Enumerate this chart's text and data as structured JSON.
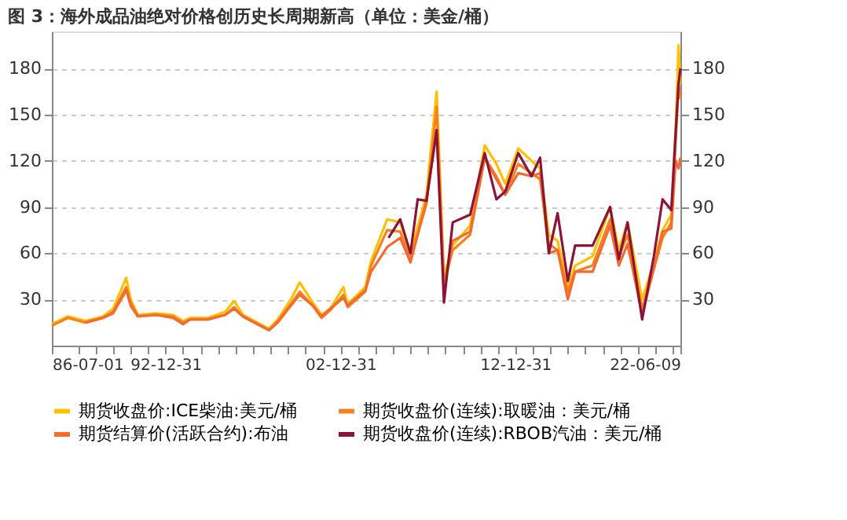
{
  "chart_data": {
    "type": "line",
    "title": "图 3：海外成品油绝对价格创历史长周期新高（单位：美金/桶）",
    "xlim": [
      "1986-07-01",
      "2022-06-09"
    ],
    "xticks": [
      {
        "value": "1986-07-01",
        "label": "86-07-01"
      },
      {
        "value": "1987-12-31",
        "label": null
      },
      {
        "value": "1988-12-31",
        "label": null
      },
      {
        "value": "1989-12-31",
        "label": null
      },
      {
        "value": "1990-12-31",
        "label": null
      },
      {
        "value": "1991-12-31",
        "label": null
      },
      {
        "value": "1992-12-31",
        "label": "92-12-31"
      },
      {
        "value": "1993-12-31",
        "label": null
      },
      {
        "value": "1994-12-31",
        "label": null
      },
      {
        "value": "1995-12-31",
        "label": null
      },
      {
        "value": "1996-12-31",
        "label": null
      },
      {
        "value": "1997-12-31",
        "label": null
      },
      {
        "value": "1998-12-31",
        "label": null
      },
      {
        "value": "1999-12-31",
        "label": null
      },
      {
        "value": "2000-12-31",
        "label": null
      },
      {
        "value": "2001-12-31",
        "label": null
      },
      {
        "value": "2002-12-31",
        "label": "02-12-31"
      },
      {
        "value": "2003-12-31",
        "label": null
      },
      {
        "value": "2004-12-31",
        "label": null
      },
      {
        "value": "2005-12-31",
        "label": null
      },
      {
        "value": "2006-12-31",
        "label": null
      },
      {
        "value": "2007-12-31",
        "label": null
      },
      {
        "value": "2008-12-31",
        "label": null
      },
      {
        "value": "2009-12-31",
        "label": null
      },
      {
        "value": "2010-12-31",
        "label": null
      },
      {
        "value": "2011-12-31",
        "label": null
      },
      {
        "value": "2012-12-31",
        "label": "12-12-31"
      },
      {
        "value": "2013-12-31",
        "label": null
      },
      {
        "value": "2014-12-31",
        "label": null
      },
      {
        "value": "2015-12-31",
        "label": null
      },
      {
        "value": "2016-12-31",
        "label": null
      },
      {
        "value": "2017-12-31",
        "label": null
      },
      {
        "value": "2018-12-31",
        "label": null
      },
      {
        "value": "2019-12-31",
        "label": null
      },
      {
        "value": "2020-12-31",
        "label": null
      },
      {
        "value": "2021-12-31",
        "label": null
      },
      {
        "value": "2022-06-09",
        "label": "22-06-09"
      }
    ],
    "ylim": [
      0,
      204
    ],
    "yticks": [
      30,
      60,
      90,
      120,
      150,
      180
    ],
    "y2lim": [
      0,
      204
    ],
    "y2ticks": [
      30,
      60,
      90,
      120,
      150,
      180
    ],
    "grid": "y",
    "legend": "bottom",
    "line_style": "solid",
    "marker": "none",
    "series": [
      {
        "name": "期货收盘价:ICE柴油:美元/桶",
        "color": "#ffc000",
        "x": [
          "1986-07",
          "1987-06",
          "1988-06",
          "1989-06",
          "1990-01",
          "1990-10",
          "1991-01",
          "1991-06",
          "1992-06",
          "1993-06",
          "1994-01",
          "1994-06",
          "1995-06",
          "1996-06",
          "1996-12",
          "1997-06",
          "1998-06",
          "1998-12",
          "1999-06",
          "2000-03",
          "2000-09",
          "2001-06",
          "2001-12",
          "2002-06",
          "2003-03",
          "2003-06",
          "2004-06",
          "2004-10",
          "2005-09",
          "2006-06",
          "2007-01",
          "2007-12",
          "2008-07",
          "2008-12",
          "2009-06",
          "2010-06",
          "2011-04",
          "2011-12",
          "2012-06",
          "2013-03",
          "2013-12",
          "2014-06",
          "2014-12",
          "2015-06",
          "2016-01",
          "2016-06",
          "2017-06",
          "2018-06",
          "2018-12",
          "2019-06",
          "2020-04",
          "2020-12",
          "2021-06",
          "2021-12",
          "2022-03",
          "2022-05",
          "2022-06-09"
        ],
        "values": [
          14,
          19,
          16,
          19,
          24,
          44,
          30,
          20,
          21,
          20,
          16,
          18,
          18,
          22,
          29,
          20,
          14,
          11,
          17,
          30,
          41,
          28,
          20,
          24,
          38,
          27,
          38,
          55,
          82,
          80,
          60,
          98,
          165,
          45,
          65,
          78,
          130,
          118,
          105,
          128,
          120,
          115,
          72,
          68,
          38,
          52,
          58,
          90,
          62,
          80,
          30,
          54,
          75,
          85,
          140,
          195,
          170
        ]
      },
      {
        "name": "期货收盘价(连续):取暖油：美元/桶",
        "color": "#f5821f",
        "x": [
          "1986-07",
          "1987-06",
          "1988-06",
          "1989-06",
          "1990-01",
          "1990-10",
          "1991-01",
          "1991-06",
          "1992-06",
          "1993-06",
          "1994-01",
          "1994-06",
          "1995-06",
          "1996-06",
          "1996-12",
          "1997-06",
          "1998-06",
          "1998-12",
          "1999-06",
          "2000-03",
          "2000-09",
          "2001-06",
          "2001-12",
          "2002-06",
          "2003-03",
          "2003-06",
          "2004-06",
          "2004-10",
          "2005-09",
          "2006-06",
          "2007-01",
          "2007-12",
          "2008-07",
          "2008-12",
          "2009-06",
          "2010-06",
          "2011-04",
          "2011-12",
          "2012-06",
          "2013-03",
          "2013-12",
          "2014-06",
          "2014-12",
          "2015-06",
          "2016-01",
          "2016-06",
          "2017-06",
          "2018-06",
          "2018-12",
          "2019-06",
          "2020-04",
          "2020-12",
          "2021-06",
          "2021-12",
          "2022-03",
          "2022-05",
          "2022-06-09"
        ],
        "values": [
          13,
          18,
          15,
          18,
          22,
          38,
          28,
          19,
          20,
          19,
          15,
          17,
          17,
          20,
          25,
          19,
          13,
          10,
          16,
          27,
          35,
          26,
          18,
          23,
          33,
          25,
          35,
          52,
          75,
          74,
          56,
          92,
          155,
          40,
          62,
          72,
          122,
          110,
          98,
          118,
          112,
          108,
          66,
          62,
          35,
          48,
          52,
          82,
          58,
          72,
          24,
          50,
          70,
          80,
          132,
          170,
          160
        ]
      },
      {
        "name": "期货结算价(活跃合约):布油",
        "color": "#f26b30",
        "x": [
          "1988-06",
          "1989-06",
          "1990-01",
          "1990-10",
          "1991-01",
          "1991-06",
          "1992-06",
          "1993-06",
          "1994-01",
          "1994-06",
          "1995-06",
          "1996-06",
          "1996-12",
          "1997-06",
          "1998-06",
          "1998-12",
          "1999-06",
          "2000-03",
          "2000-09",
          "2001-06",
          "2001-12",
          "2002-06",
          "2003-03",
          "2003-06",
          "2004-06",
          "2004-10",
          "2005-09",
          "2006-06",
          "2007-01",
          "2007-12",
          "2008-07",
          "2008-12",
          "2009-06",
          "2010-06",
          "2011-04",
          "2011-12",
          "2012-06",
          "2013-03",
          "2013-12",
          "2014-06",
          "2014-12",
          "2015-06",
          "2016-01",
          "2016-06",
          "2017-06",
          "2018-06",
          "2018-12",
          "2019-06",
          "2020-04",
          "2020-12",
          "2021-06",
          "2021-12",
          "2022-03",
          "2022-05",
          "2022-06-09"
        ],
        "values": [
          15,
          18,
          21,
          36,
          26,
          19,
          20,
          18,
          14,
          17,
          17,
          20,
          24,
          19,
          13,
          10,
          15,
          26,
          33,
          26,
          19,
          24,
          31,
          26,
          36,
          48,
          64,
          70,
          54,
          94,
          140,
          38,
          68,
          74,
          122,
          108,
          98,
          112,
          110,
          112,
          60,
          62,
          30,
          48,
          48,
          78,
          52,
          66,
          20,
          50,
          74,
          76,
          120,
          115,
          122
        ]
      },
      {
        "name": "期货收盘价(连续):RBOB汽油：美元/桶",
        "color": "#8b1538",
        "x": [
          "2005-10",
          "2006-06",
          "2007-01",
          "2007-06",
          "2007-12",
          "2008-07",
          "2008-12",
          "2009-06",
          "2010-06",
          "2011-04",
          "2011-12",
          "2012-06",
          "2013-03",
          "2013-12",
          "2014-06",
          "2014-12",
          "2015-06",
          "2016-01",
          "2016-06",
          "2017-06",
          "2018-06",
          "2018-12",
          "2019-06",
          "2020-04",
          "2020-12",
          "2021-06",
          "2021-12",
          "2022-03",
          "2022-05",
          "2022-06-09"
        ],
        "values": [
          70,
          82,
          60,
          95,
          94,
          140,
          28,
          80,
          85,
          125,
          95,
          100,
          125,
          110,
          122,
          60,
          86,
          42,
          65,
          65,
          90,
          56,
          80,
          17,
          58,
          95,
          88,
          138,
          170,
          180
        ]
      }
    ]
  }
}
